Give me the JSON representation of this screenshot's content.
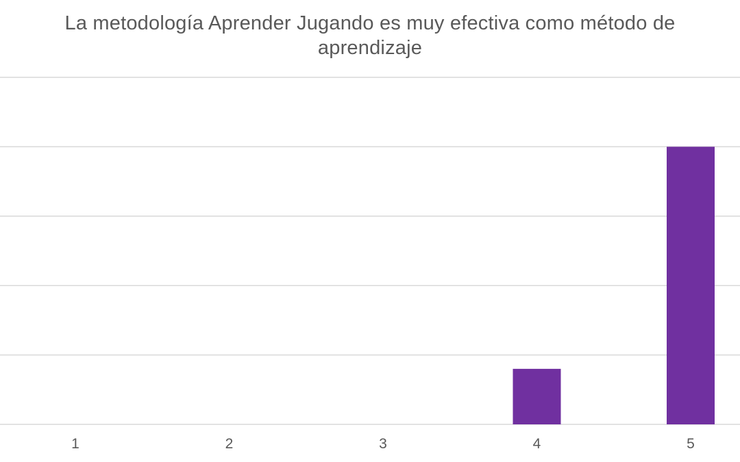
{
  "chart_data": {
    "type": "bar",
    "title": "La metodología Aprender Jugando es muy efectiva como método de aprendizaje",
    "categories": [
      "1",
      "2",
      "3",
      "4",
      "5"
    ],
    "values": [
      0,
      0,
      0,
      4,
      20
    ],
    "xlabel": "",
    "ylabel": "",
    "ylim": [
      0,
      25
    ],
    "y_gridlines": [
      0,
      5,
      10,
      15,
      20,
      25
    ],
    "grid": true,
    "legend": "none",
    "bar_color": "#7030a0",
    "grid_color": "#d9d9d9",
    "text_color": "#595959"
  }
}
